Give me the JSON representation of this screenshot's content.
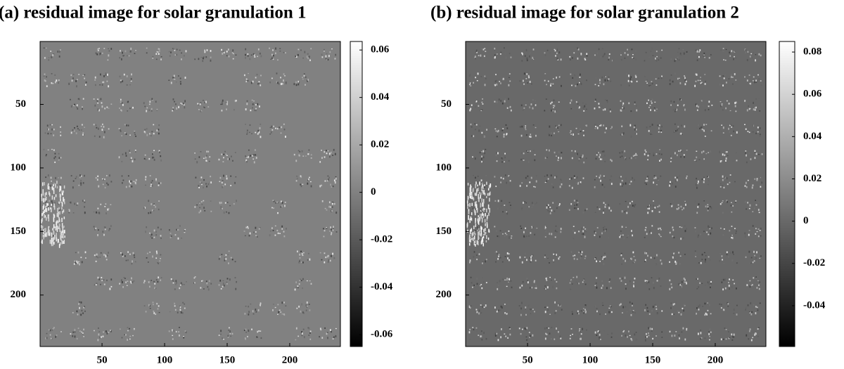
{
  "chart_data": [
    {
      "type": "heatmap",
      "title": "(a)  residual image for solar granulation 1",
      "colormap": "gray",
      "xlim": [
        0.5,
        240.5
      ],
      "ylim": [
        0.5,
        240.5
      ],
      "xticks": [
        50,
        100,
        150,
        200
      ],
      "yticks": [
        50,
        100,
        150,
        200
      ],
      "clim": [
        -0.065,
        0.0636
      ],
      "cticks": [
        0.06,
        0.04,
        0.02,
        0,
        -0.02,
        -0.04,
        -0.06
      ]
    },
    {
      "type": "heatmap",
      "title": "(b)  residual image for solar granulation 2",
      "colormap": "gray",
      "xlim": [
        0.5,
        240.5
      ],
      "ylim": [
        0.5,
        240.5
      ],
      "xticks": [
        50,
        100,
        150,
        200
      ],
      "yticks": [
        50,
        100,
        150,
        200
      ],
      "clim": [
        -0.0593,
        0.085
      ],
      "cticks": [
        0.08,
        0.06,
        0.04,
        0.02,
        0,
        -0.02,
        -0.04
      ]
    }
  ]
}
